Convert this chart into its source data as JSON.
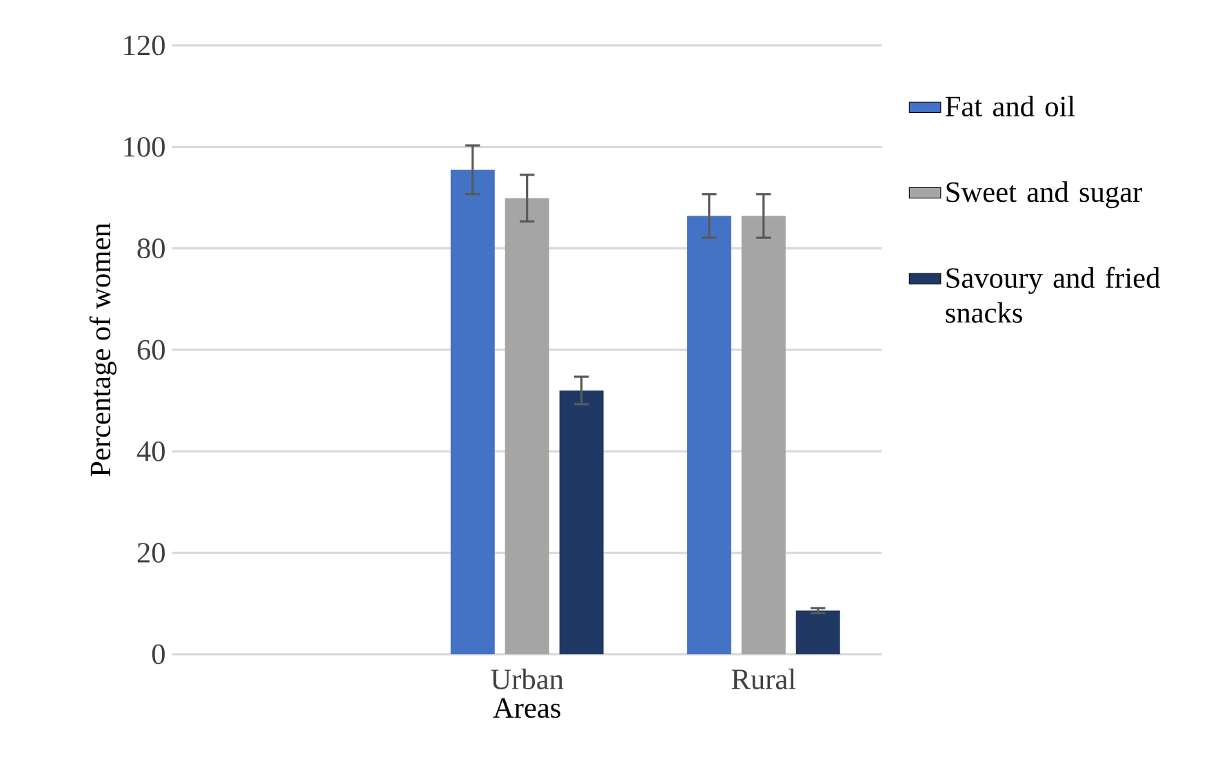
{
  "chart_data": {
    "type": "bar",
    "xlabel": "Areas",
    "ylabel": "Percentage of women",
    "categories": [
      null,
      "Urban",
      "Rural"
    ],
    "series": [
      {
        "name": "Fat and oil",
        "color": "#4472c4",
        "values": [
          null,
          95.5,
          86.4
        ],
        "errors": [
          null,
          4.8,
          4.3
        ]
      },
      {
        "name": "Sweet and sugar",
        "color": "#a5a5a5",
        "values": [
          null,
          89.9,
          86.4
        ],
        "errors": [
          null,
          4.6,
          4.3
        ]
      },
      {
        "name": "Savoury and fried snacks",
        "color": "#203864",
        "values": [
          null,
          52.0,
          8.6
        ],
        "errors": [
          null,
          2.7,
          0.5
        ]
      }
    ],
    "ylim": [
      0,
      120
    ],
    "yticks": [
      0,
      20,
      40,
      60,
      80,
      100,
      120
    ],
    "grid": "y",
    "legend": "right"
  }
}
